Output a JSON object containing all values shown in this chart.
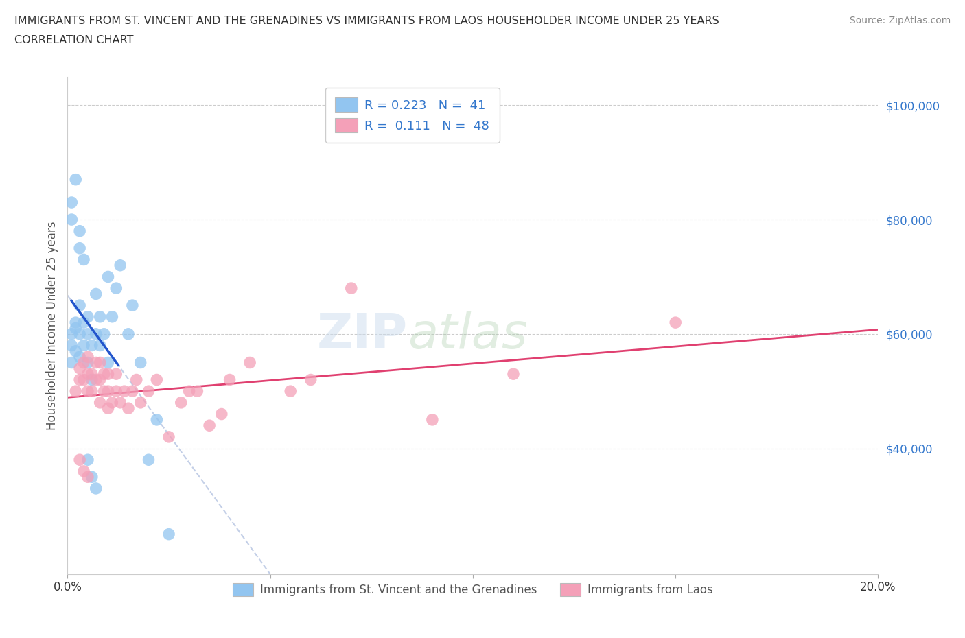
{
  "title_line1": "IMMIGRANTS FROM ST. VINCENT AND THE GRENADINES VS IMMIGRANTS FROM LAOS HOUSEHOLDER INCOME UNDER 25 YEARS",
  "title_line2": "CORRELATION CHART",
  "source": "Source: ZipAtlas.com",
  "ylabel": "Householder Income Under 25 years",
  "xmin": 0.0,
  "xmax": 0.2,
  "ymin": 18000,
  "ymax": 105000,
  "yticks": [
    40000,
    60000,
    80000,
    100000
  ],
  "ytick_labels": [
    "$40,000",
    "$60,000",
    "$80,000",
    "$100,000"
  ],
  "xticks": [
    0.0,
    0.05,
    0.1,
    0.15,
    0.2
  ],
  "xtick_labels": [
    "0.0%",
    "",
    "",
    "",
    "20.0%"
  ],
  "color_blue": "#92C5F0",
  "color_pink": "#F4A0B8",
  "trendline_blue_solid": "#2255CC",
  "trendline_blue_dash": "#AABBDD",
  "trendline_pink": "#E04070",
  "watermark_zip": "ZIP",
  "watermark_atlas": "atlas",
  "background_color": "#FFFFFF",
  "grid_color": "#CCCCCC",
  "blue_scatter_x": [
    0.001,
    0.001,
    0.001,
    0.002,
    0.002,
    0.002,
    0.003,
    0.003,
    0.003,
    0.004,
    0.004,
    0.005,
    0.005,
    0.005,
    0.006,
    0.006,
    0.007,
    0.007,
    0.008,
    0.008,
    0.009,
    0.01,
    0.01,
    0.011,
    0.012,
    0.013,
    0.015,
    0.016,
    0.018,
    0.02,
    0.022,
    0.025,
    0.001,
    0.001,
    0.002,
    0.003,
    0.003,
    0.004,
    0.005,
    0.006,
    0.007
  ],
  "blue_scatter_y": [
    55000,
    58000,
    60000,
    57000,
    61000,
    62000,
    56000,
    60000,
    65000,
    58000,
    62000,
    55000,
    60000,
    63000,
    52000,
    58000,
    60000,
    67000,
    58000,
    63000,
    60000,
    55000,
    70000,
    63000,
    68000,
    72000,
    60000,
    65000,
    55000,
    38000,
    45000,
    25000,
    80000,
    83000,
    87000,
    75000,
    78000,
    73000,
    38000,
    35000,
    33000
  ],
  "pink_scatter_x": [
    0.002,
    0.003,
    0.003,
    0.004,
    0.004,
    0.005,
    0.005,
    0.005,
    0.006,
    0.006,
    0.007,
    0.007,
    0.008,
    0.008,
    0.008,
    0.009,
    0.009,
    0.01,
    0.01,
    0.011,
    0.012,
    0.012,
    0.013,
    0.014,
    0.015,
    0.016,
    0.017,
    0.018,
    0.02,
    0.022,
    0.025,
    0.028,
    0.03,
    0.032,
    0.035,
    0.038,
    0.04,
    0.045,
    0.055,
    0.06,
    0.07,
    0.09,
    0.11,
    0.15,
    0.003,
    0.004,
    0.005,
    0.01
  ],
  "pink_scatter_y": [
    50000,
    54000,
    52000,
    52000,
    55000,
    50000,
    53000,
    56000,
    50000,
    53000,
    52000,
    55000,
    48000,
    52000,
    55000,
    50000,
    53000,
    50000,
    53000,
    48000,
    50000,
    53000,
    48000,
    50000,
    47000,
    50000,
    52000,
    48000,
    50000,
    52000,
    42000,
    48000,
    50000,
    50000,
    44000,
    46000,
    52000,
    55000,
    50000,
    52000,
    68000,
    45000,
    53000,
    62000,
    38000,
    36000,
    35000,
    47000
  ],
  "legend_text": [
    "R = 0.223   N =  41",
    "R =  0.111   N =  48"
  ]
}
